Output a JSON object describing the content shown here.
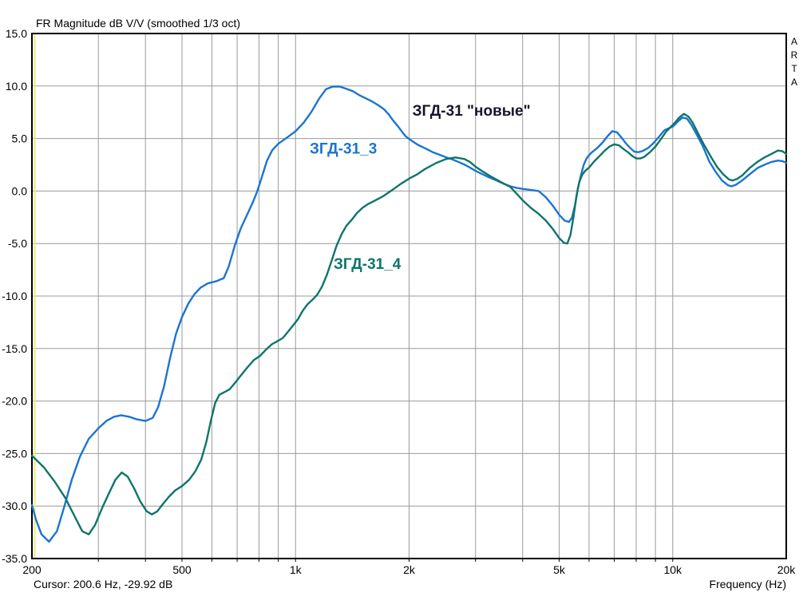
{
  "header": {
    "title": "FR Magnitude dB V/V (smoothed 1/3 oct)"
  },
  "watermark": "ARTA",
  "status": {
    "cursor_label": "Cursor: 200.6 Hz, -29.92 dB",
    "xaxis_label": "Frequency (Hz)"
  },
  "chart_data": {
    "type": "line",
    "title": "FR Magnitude dB V/V (smoothed 1/3 oct)",
    "x_scale": "log",
    "x_range": [
      200,
      20000
    ],
    "y_range": [
      -35,
      15
    ],
    "y_tick_step": 5,
    "grid": true,
    "grid_color": "#9a9a9a",
    "border_color": "#000000",
    "cursor_color": "#eeee7c",
    "cursor": {
      "freq_hz": 200.6,
      "db": -29.92
    },
    "y_ticks": [
      {
        "v": 15,
        "label": "15.0"
      },
      {
        "v": 10,
        "label": "10.0"
      },
      {
        "v": 5,
        "label": "5.0"
      },
      {
        "v": 0,
        "label": "0.0"
      },
      {
        "v": -5,
        "label": "-5.0"
      },
      {
        "v": -10,
        "label": "-10.0"
      },
      {
        "v": -15,
        "label": "-15.0"
      },
      {
        "v": -20,
        "label": "-20.0"
      },
      {
        "v": -25,
        "label": "-25.0"
      },
      {
        "v": -30,
        "label": "-30.0"
      },
      {
        "v": -35,
        "label": "-35.0"
      }
    ],
    "x_ticks": [
      {
        "f": 200,
        "label": "200"
      },
      {
        "f": 500,
        "label": "500"
      },
      {
        "f": 1000,
        "label": "1k"
      },
      {
        "f": 2000,
        "label": "2k"
      },
      {
        "f": 5000,
        "label": "5k"
      },
      {
        "f": 10000,
        "label": "10k"
      },
      {
        "f": 20000,
        "label": "20k"
      }
    ],
    "minor_gridlines_hz": [
      300,
      400,
      500,
      600,
      700,
      800,
      900,
      1000,
      2000,
      3000,
      4000,
      5000,
      6000,
      7000,
      8000,
      9000,
      10000
    ],
    "annotations": [
      {
        "text": "ЗГД-31 \"новые\"",
        "color": "#15152e",
        "f": 2040,
        "db": 7.6
      },
      {
        "text": "ЗГД-31_3",
        "color": "#1b74d2",
        "f": 1090,
        "db": 4.0
      },
      {
        "text": "ЗГД-31_4",
        "color": "#0d7669",
        "f": 1262,
        "db": -7.0
      }
    ],
    "series": [
      {
        "name": "ЗГД-31_3",
        "color": "#1b74d2",
        "points": [
          [
            200,
            -29.9
          ],
          [
            205,
            -31.3
          ],
          [
            212,
            -32.7
          ],
          [
            222,
            -33.4
          ],
          [
            233,
            -32.4
          ],
          [
            243,
            -30.2
          ],
          [
            255,
            -27.5
          ],
          [
            268,
            -25.3
          ],
          [
            283,
            -23.6
          ],
          [
            300,
            -22.6
          ],
          [
            315,
            -21.9
          ],
          [
            330,
            -21.5
          ],
          [
            345,
            -21.35
          ],
          [
            362,
            -21.5
          ],
          [
            380,
            -21.75
          ],
          [
            400,
            -21.9
          ],
          [
            418,
            -21.6
          ],
          [
            432,
            -20.6
          ],
          [
            448,
            -18.6
          ],
          [
            465,
            -15.9
          ],
          [
            482,
            -13.6
          ],
          [
            500,
            -12.0
          ],
          [
            520,
            -10.7
          ],
          [
            540,
            -9.8
          ],
          [
            560,
            -9.2
          ],
          [
            585,
            -8.8
          ],
          [
            615,
            -8.6
          ],
          [
            645,
            -8.3
          ],
          [
            665,
            -7.2
          ],
          [
            690,
            -5.2
          ],
          [
            715,
            -3.6
          ],
          [
            745,
            -2.2
          ],
          [
            770,
            -1.1
          ],
          [
            792,
            0.0
          ],
          [
            815,
            1.4
          ],
          [
            840,
            2.9
          ],
          [
            868,
            3.9
          ],
          [
            900,
            4.5
          ],
          [
            950,
            5.1
          ],
          [
            1000,
            5.7
          ],
          [
            1050,
            6.5
          ],
          [
            1100,
            7.5
          ],
          [
            1155,
            8.8
          ],
          [
            1205,
            9.7
          ],
          [
            1255,
            9.95
          ],
          [
            1310,
            9.95
          ],
          [
            1360,
            9.75
          ],
          [
            1420,
            9.5
          ],
          [
            1480,
            9.1
          ],
          [
            1540,
            8.8
          ],
          [
            1600,
            8.5
          ],
          [
            1660,
            8.15
          ],
          [
            1715,
            7.8
          ],
          [
            1765,
            7.3
          ],
          [
            1815,
            6.7
          ],
          [
            1865,
            6.2
          ],
          [
            1920,
            5.6
          ],
          [
            1960,
            5.2
          ],
          [
            2010,
            4.9
          ],
          [
            2110,
            4.4
          ],
          [
            2210,
            4.05
          ],
          [
            2310,
            3.7
          ],
          [
            2410,
            3.45
          ],
          [
            2510,
            3.2
          ],
          [
            2610,
            3.0
          ],
          [
            2710,
            2.75
          ],
          [
            2810,
            2.5
          ],
          [
            2910,
            2.2
          ],
          [
            3010,
            1.9
          ],
          [
            3110,
            1.65
          ],
          [
            3260,
            1.3
          ],
          [
            3410,
            1.0
          ],
          [
            3560,
            0.7
          ],
          [
            3710,
            0.45
          ],
          [
            3860,
            0.3
          ],
          [
            4010,
            0.2
          ],
          [
            4210,
            0.1
          ],
          [
            4410,
            0.0
          ],
          [
            4610,
            -0.6
          ],
          [
            4810,
            -1.4
          ],
          [
            5010,
            -2.3
          ],
          [
            5160,
            -2.8
          ],
          [
            5310,
            -2.95
          ],
          [
            5410,
            -2.5
          ],
          [
            5510,
            -1.3
          ],
          [
            5610,
            0.3
          ],
          [
            5710,
            1.5
          ],
          [
            5810,
            2.5
          ],
          [
            5910,
            3.1
          ],
          [
            6010,
            3.45
          ],
          [
            6110,
            3.7
          ],
          [
            6310,
            4.1
          ],
          [
            6510,
            4.6
          ],
          [
            6710,
            5.2
          ],
          [
            6910,
            5.7
          ],
          [
            7110,
            5.6
          ],
          [
            7310,
            5.1
          ],
          [
            7510,
            4.55
          ],
          [
            7710,
            4.1
          ],
          [
            7910,
            3.75
          ],
          [
            8110,
            3.7
          ],
          [
            8310,
            3.8
          ],
          [
            8610,
            4.1
          ],
          [
            8910,
            4.6
          ],
          [
            9210,
            5.2
          ],
          [
            9510,
            5.8
          ],
          [
            9810,
            6.0
          ],
          [
            10010,
            6.15
          ],
          [
            10310,
            6.6
          ],
          [
            10610,
            7.0
          ],
          [
            10910,
            6.9
          ],
          [
            11210,
            6.3
          ],
          [
            11610,
            5.3
          ],
          [
            12010,
            4.3
          ],
          [
            12510,
            2.8
          ],
          [
            13010,
            1.8
          ],
          [
            13510,
            1.0
          ],
          [
            14010,
            0.55
          ],
          [
            14310,
            0.45
          ],
          [
            14710,
            0.6
          ],
          [
            15210,
            0.95
          ],
          [
            16010,
            1.6
          ],
          [
            16810,
            2.2
          ],
          [
            17510,
            2.5
          ],
          [
            18210,
            2.75
          ],
          [
            19010,
            2.9
          ],
          [
            19510,
            2.85
          ],
          [
            20000,
            2.7
          ]
        ]
      },
      {
        "name": "ЗГД-31_4",
        "color": "#0d7669",
        "points": [
          [
            200,
            -25.2
          ],
          [
            215,
            -26.3
          ],
          [
            230,
            -27.7
          ],
          [
            245,
            -29.2
          ],
          [
            258,
            -30.8
          ],
          [
            272,
            -32.4
          ],
          [
            283,
            -32.7
          ],
          [
            294,
            -31.8
          ],
          [
            307,
            -30.2
          ],
          [
            320,
            -28.8
          ],
          [
            333,
            -27.5
          ],
          [
            346,
            -26.8
          ],
          [
            359,
            -27.2
          ],
          [
            373,
            -28.3
          ],
          [
            388,
            -29.6
          ],
          [
            403,
            -30.5
          ],
          [
            416,
            -30.8
          ],
          [
            430,
            -30.5
          ],
          [
            445,
            -29.8
          ],
          [
            462,
            -29.1
          ],
          [
            480,
            -28.5
          ],
          [
            500,
            -28.1
          ],
          [
            522,
            -27.5
          ],
          [
            542,
            -26.7
          ],
          [
            562,
            -25.6
          ],
          [
            580,
            -23.9
          ],
          [
            596,
            -21.9
          ],
          [
            612,
            -20.2
          ],
          [
            628,
            -19.4
          ],
          [
            648,
            -19.15
          ],
          [
            668,
            -18.9
          ],
          [
            690,
            -18.3
          ],
          [
            715,
            -17.6
          ],
          [
            745,
            -16.8
          ],
          [
            775,
            -16.1
          ],
          [
            805,
            -15.7
          ],
          [
            835,
            -15.1
          ],
          [
            865,
            -14.6
          ],
          [
            895,
            -14.3
          ],
          [
            925,
            -14.0
          ],
          [
            955,
            -13.4
          ],
          [
            985,
            -12.8
          ],
          [
            1015,
            -12.2
          ],
          [
            1045,
            -11.4
          ],
          [
            1075,
            -10.8
          ],
          [
            1105,
            -10.4
          ],
          [
            1140,
            -9.9
          ],
          [
            1175,
            -9.1
          ],
          [
            1210,
            -8.0
          ],
          [
            1245,
            -6.7
          ],
          [
            1285,
            -5.2
          ],
          [
            1325,
            -4.1
          ],
          [
            1365,
            -3.3
          ],
          [
            1405,
            -2.8
          ],
          [
            1455,
            -2.1
          ],
          [
            1505,
            -1.6
          ],
          [
            1555,
            -1.25
          ],
          [
            1605,
            -1.0
          ],
          [
            1655,
            -0.75
          ],
          [
            1705,
            -0.5
          ],
          [
            1755,
            -0.2
          ],
          [
            1805,
            0.1
          ],
          [
            1905,
            0.7
          ],
          [
            2005,
            1.2
          ],
          [
            2105,
            1.6
          ],
          [
            2205,
            2.1
          ],
          [
            2355,
            2.65
          ],
          [
            2505,
            3.05
          ],
          [
            2655,
            3.2
          ],
          [
            2805,
            3.05
          ],
          [
            2905,
            2.75
          ],
          [
            3005,
            2.3
          ],
          [
            3155,
            1.8
          ],
          [
            3305,
            1.35
          ],
          [
            3505,
            0.85
          ],
          [
            3705,
            0.4
          ],
          [
            3855,
            -0.25
          ],
          [
            4005,
            -0.9
          ],
          [
            4205,
            -1.6
          ],
          [
            4405,
            -2.15
          ],
          [
            4605,
            -2.8
          ],
          [
            4805,
            -3.6
          ],
          [
            5005,
            -4.5
          ],
          [
            5155,
            -4.95
          ],
          [
            5255,
            -5.0
          ],
          [
            5355,
            -4.2
          ],
          [
            5455,
            -2.5
          ],
          [
            5555,
            -0.5
          ],
          [
            5655,
            0.9
          ],
          [
            5755,
            1.55
          ],
          [
            5855,
            1.9
          ],
          [
            6005,
            2.25
          ],
          [
            6205,
            2.85
          ],
          [
            6405,
            3.35
          ],
          [
            6605,
            3.85
          ],
          [
            6805,
            4.25
          ],
          [
            7005,
            4.45
          ],
          [
            7205,
            4.35
          ],
          [
            7405,
            4.0
          ],
          [
            7605,
            3.7
          ],
          [
            7805,
            3.35
          ],
          [
            8005,
            3.1
          ],
          [
            8205,
            3.1
          ],
          [
            8405,
            3.25
          ],
          [
            8705,
            3.7
          ],
          [
            9005,
            4.25
          ],
          [
            9305,
            4.95
          ],
          [
            9605,
            5.65
          ],
          [
            9905,
            6.15
          ],
          [
            10105,
            6.45
          ],
          [
            10405,
            7.0
          ],
          [
            10705,
            7.35
          ],
          [
            11005,
            7.1
          ],
          [
            11305,
            6.5
          ],
          [
            11705,
            5.4
          ],
          [
            12105,
            4.4
          ],
          [
            12605,
            3.3
          ],
          [
            13105,
            2.3
          ],
          [
            13605,
            1.6
          ],
          [
            14105,
            1.1
          ],
          [
            14405,
            1.0
          ],
          [
            14805,
            1.15
          ],
          [
            15305,
            1.5
          ],
          [
            16005,
            2.2
          ],
          [
            16805,
            2.8
          ],
          [
            17505,
            3.2
          ],
          [
            18205,
            3.5
          ],
          [
            19005,
            3.85
          ],
          [
            19505,
            3.8
          ],
          [
            20000,
            3.55
          ]
        ]
      }
    ]
  }
}
